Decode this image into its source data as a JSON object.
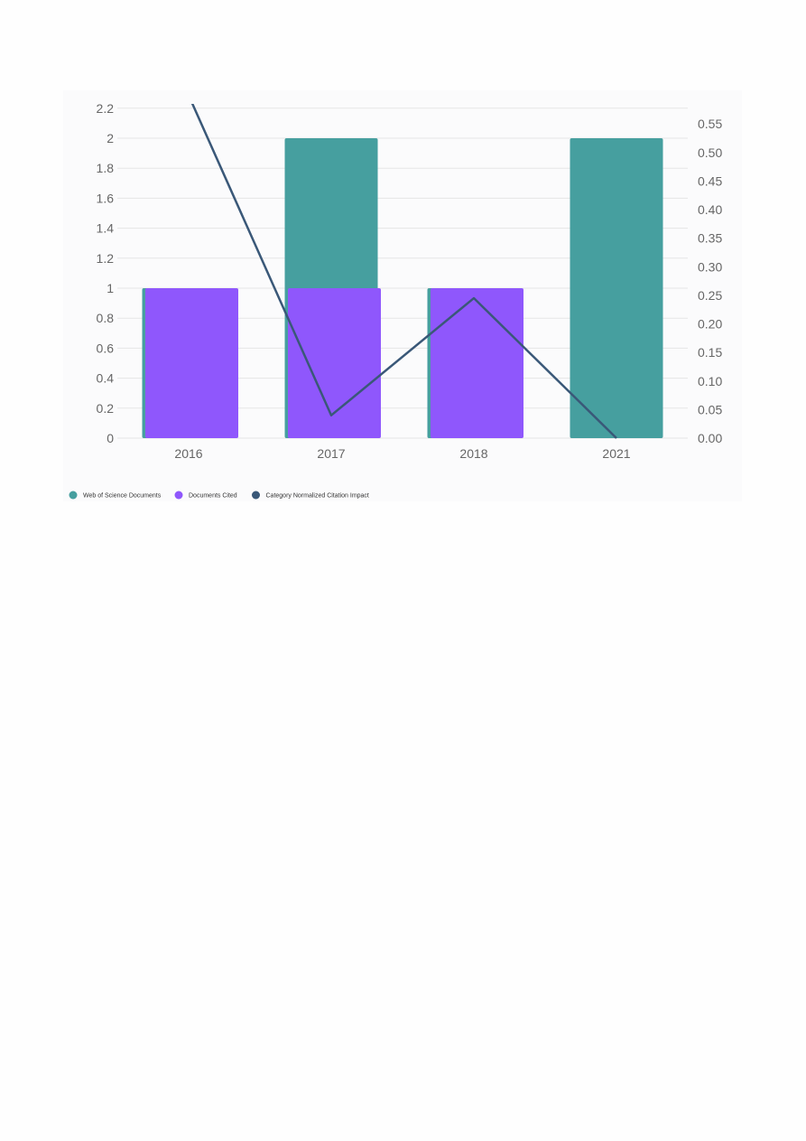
{
  "chart_data": {
    "type": "bar",
    "categories": [
      "2016",
      "2017",
      "2018",
      "2021"
    ],
    "series": [
      {
        "name": "Web of Science Documents",
        "kind": "bar",
        "axis": "left",
        "color": "#469f9f",
        "values": [
          1,
          2,
          1,
          2
        ]
      },
      {
        "name": "Documents Cited",
        "kind": "bar",
        "axis": "left",
        "color": "#8f57fc",
        "values": [
          1,
          1,
          1,
          0
        ]
      },
      {
        "name": "Category Normalized Citation Impact",
        "kind": "line",
        "axis": "right",
        "color": "#3a5878",
        "values": [
          0.6,
          0.04,
          0.245,
          0.0
        ]
      }
    ],
    "left_axis": {
      "min": 0,
      "max": 2.2,
      "ticks": [
        "0",
        "0.2",
        "0.4",
        "0.6",
        "0.8",
        "1",
        "1.2",
        "1.4",
        "1.6",
        "1.8",
        "2",
        "2.2"
      ]
    },
    "right_axis": {
      "min": 0,
      "max": 0.575,
      "ticks": [
        "0.00",
        "0.05",
        "0.10",
        "0.15",
        "0.20",
        "0.25",
        "0.30",
        "0.35",
        "0.40",
        "0.45",
        "0.50",
        "0.55"
      ]
    },
    "grid": true,
    "legend_position": "bottom-left"
  }
}
